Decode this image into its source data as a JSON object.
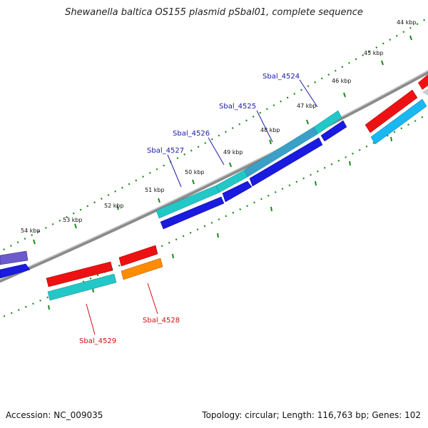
{
  "title": "Shewanella baltica OS155 plasmid pSbal01, complete sequence",
  "footer": {
    "accession": "Accession: NC_009035",
    "stats": "Topology: circular; Length: 116,763 bp; Genes: 102"
  },
  "ticks": [
    "44 kbp",
    "45 kbp",
    "46 kbp",
    "47 kbp",
    "48 kbp",
    "49 kbp",
    "50 kbp",
    "51 kbp",
    "52 kbp",
    "53 kbp",
    "54 kbp"
  ],
  "genes_forward": [
    "Sbal_4524",
    "Sbal_4525",
    "Sbal_4526",
    "Sbal_4527"
  ],
  "genes_reverse": [
    "Sbal_4528",
    "Sbal_4529"
  ],
  "colors": {
    "forward_label": "#1a1aa8",
    "reverse_label": "#cc1111",
    "teal": "#22c8c8",
    "blue": "#1a1ae0",
    "red": "#ee1111",
    "orange": "#ff8c00",
    "sky": "#1ab8f0",
    "purple": "#6a5acd",
    "backbone": "#8a8a8a",
    "dots": "#1a8a1a"
  }
}
